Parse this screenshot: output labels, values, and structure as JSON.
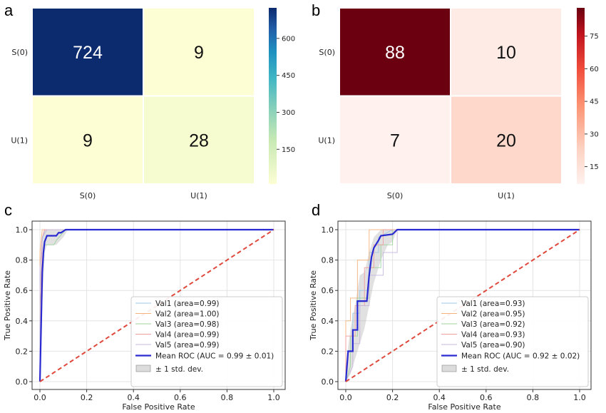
{
  "chart_data": [
    {
      "panel": "a",
      "type": "heatmap",
      "row_labels": [
        "S(0)",
        "U(1)"
      ],
      "col_labels": [
        "S(0)",
        "U(1)"
      ],
      "values": [
        [
          724,
          9
        ],
        [
          9,
          28
        ]
      ],
      "colormap": "YlGnBu",
      "colors": {
        "low": "#fdfed3",
        "high": "#0c2a6e"
      },
      "colorbar": {
        "ticks": [
          150,
          300,
          450,
          600
        ],
        "range": [
          9,
          724
        ]
      }
    },
    {
      "panel": "b",
      "type": "heatmap",
      "row_labels": [
        "S(0)",
        "U(1)"
      ],
      "col_labels": [
        "S(0)",
        "U(1)"
      ],
      "values": [
        [
          88,
          10
        ],
        [
          7,
          20
        ]
      ],
      "colormap": "Reds",
      "colors": {
        "low": "#fff1ee",
        "high": "#6a0010"
      },
      "colorbar": {
        "ticks": [
          15,
          30,
          45,
          60,
          75
        ],
        "range": [
          7,
          88
        ]
      }
    },
    {
      "panel": "c",
      "type": "line",
      "xlabel": "False Positive Rate",
      "ylabel": "True Positive Rate",
      "xlim": [
        0,
        1
      ],
      "ylim": [
        0,
        1
      ],
      "xticks": [
        "0.0",
        "0.2",
        "0.4",
        "0.6",
        "0.8",
        "1.0"
      ],
      "yticks": [
        "0.0",
        "0.2",
        "0.4",
        "0.6",
        "0.8",
        "1.0"
      ],
      "grid": true,
      "legend_position": "lower-right",
      "series": [
        {
          "name": "Val1 (area=0.99)",
          "color": "#9ec9e6",
          "x": [
            0,
            0,
            0.01,
            0.02,
            0.05,
            1
          ],
          "y": [
            0,
            0.6,
            0.92,
            1,
            1,
            1
          ]
        },
        {
          "name": "Val2 (area=1.00)",
          "color": "#f5b27a",
          "x": [
            0,
            0,
            0.01,
            1
          ],
          "y": [
            0,
            0.85,
            1,
            1
          ]
        },
        {
          "name": "Val3 (area=0.98)",
          "color": "#9fd39f",
          "x": [
            0,
            0,
            0.02,
            0.03,
            0.06,
            0.07,
            0.11,
            1
          ],
          "y": [
            0,
            0.5,
            0.9,
            0.9,
            0.9,
            0.93,
            1,
            1
          ]
        },
        {
          "name": "Val4 (area=0.99)",
          "color": "#ef9f9f",
          "x": [
            0,
            0.005,
            0.01,
            0.02,
            1
          ],
          "y": [
            0,
            0.7,
            0.95,
            1,
            1
          ]
        },
        {
          "name": "Val5 (area=0.99)",
          "color": "#c7b7dd",
          "x": [
            0,
            0,
            0.01,
            0.03,
            1
          ],
          "y": [
            0,
            0.75,
            0.95,
            1,
            1
          ]
        },
        {
          "name": "Mean ROC (AUC = 0.99 ± 0.01)",
          "color": "#2a2ad1",
          "x": [
            0,
            0.01,
            0.015,
            0.02,
            0.03,
            0.07,
            0.08,
            0.09,
            0.1,
            0.11,
            1
          ],
          "y": [
            0,
            0.72,
            0.85,
            0.92,
            0.96,
            0.96,
            0.98,
            0.98,
            0.99,
            1,
            1
          ]
        }
      ],
      "band": {
        "name": "± 1 std. dev.",
        "x": [
          0,
          0.01,
          0.02,
          0.03,
          0.07,
          0.1,
          0.12,
          1
        ],
        "upper": [
          0.1,
          0.88,
          1,
          1,
          1,
          1,
          1,
          1
        ],
        "lower": [
          0,
          0.5,
          0.85,
          0.9,
          0.9,
          0.95,
          1,
          1
        ]
      },
      "chance": {
        "color": "#e0483c",
        "x": [
          0,
          1
        ],
        "y": [
          0,
          1
        ]
      }
    },
    {
      "panel": "d",
      "type": "line",
      "xlabel": "False Positive Rate",
      "ylabel": "True Positive Rate",
      "xlim": [
        0,
        1
      ],
      "ylim": [
        0,
        1
      ],
      "xticks": [
        "0.0",
        "0.2",
        "0.4",
        "0.6",
        "0.8",
        "1.0"
      ],
      "yticks": [
        "0.0",
        "0.2",
        "0.4",
        "0.6",
        "0.8",
        "1.0"
      ],
      "grid": true,
      "legend_position": "lower-right",
      "series": [
        {
          "name": "Val1 (area=0.93)",
          "color": "#9ec9e6",
          "x": [
            0,
            0,
            0.03,
            0.03,
            0.06,
            0.06,
            0.1,
            0.1,
            0.14,
            0.14,
            0.2,
            1
          ],
          "y": [
            0,
            0.2,
            0.2,
            0.45,
            0.45,
            0.6,
            0.6,
            0.85,
            0.85,
            0.95,
            1,
            1
          ]
        },
        {
          "name": "Val2 (area=0.95)",
          "color": "#f5b27a",
          "x": [
            0,
            0,
            0.02,
            0.02,
            0.05,
            0.05,
            0.1,
            0.1,
            0.11,
            1
          ],
          "y": [
            0,
            0.4,
            0.4,
            0.55,
            0.55,
            0.8,
            0.8,
            1,
            1,
            1
          ]
        },
        {
          "name": "Val3 (area=0.92)",
          "color": "#9fd39f",
          "x": [
            0,
            0.02,
            0.02,
            0.05,
            0.05,
            0.1,
            0.1,
            0.15,
            0.15,
            0.2,
            0.2,
            1
          ],
          "y": [
            0,
            0.1,
            0.3,
            0.3,
            0.55,
            0.55,
            0.75,
            0.75,
            0.9,
            0.9,
            1,
            1
          ]
        },
        {
          "name": "Val4 (area=0.93)",
          "color": "#ef9f9f",
          "x": [
            0,
            0,
            0.04,
            0.04,
            0.08,
            0.08,
            0.12,
            0.12,
            0.16,
            0.16,
            1
          ],
          "y": [
            0,
            0.3,
            0.3,
            0.5,
            0.5,
            0.75,
            0.75,
            0.9,
            0.9,
            1,
            1
          ]
        },
        {
          "name": "Val5 (area=0.90)",
          "color": "#c7b7dd",
          "x": [
            0,
            0.03,
            0.03,
            0.06,
            0.06,
            0.1,
            0.1,
            0.16,
            0.16,
            0.22,
            0.22,
            1
          ],
          "y": [
            0,
            0.1,
            0.25,
            0.25,
            0.5,
            0.5,
            0.7,
            0.7,
            0.85,
            0.85,
            1,
            1
          ]
        },
        {
          "name": "Mean ROC (AUC = 0.92 ± 0.02)",
          "color": "#2a2ad1",
          "x": [
            0,
            0.01,
            0.03,
            0.03,
            0.05,
            0.05,
            0.07,
            0.09,
            0.1,
            0.11,
            0.12,
            0.14,
            0.15,
            0.2,
            0.22,
            1
          ],
          "y": [
            0,
            0.2,
            0.2,
            0.34,
            0.34,
            0.53,
            0.53,
            0.53,
            0.7,
            0.82,
            0.88,
            0.93,
            0.96,
            0.97,
            1,
            1
          ]
        }
      ],
      "band": {
        "name": "± 1 std. dev.",
        "x": [
          0,
          0.02,
          0.04,
          0.06,
          0.08,
          0.1,
          0.12,
          0.15,
          0.18,
          0.2,
          0.22,
          1
        ],
        "upper": [
          0.1,
          0.35,
          0.5,
          0.7,
          0.72,
          0.85,
          0.95,
          1,
          1,
          1,
          1,
          1
        ],
        "lower": [
          0,
          0.05,
          0.15,
          0.25,
          0.35,
          0.5,
          0.65,
          0.8,
          0.9,
          0.92,
          1,
          1
        ]
      },
      "chance": {
        "color": "#e0483c",
        "x": [
          0,
          1
        ],
        "y": [
          0,
          1
        ]
      }
    }
  ]
}
